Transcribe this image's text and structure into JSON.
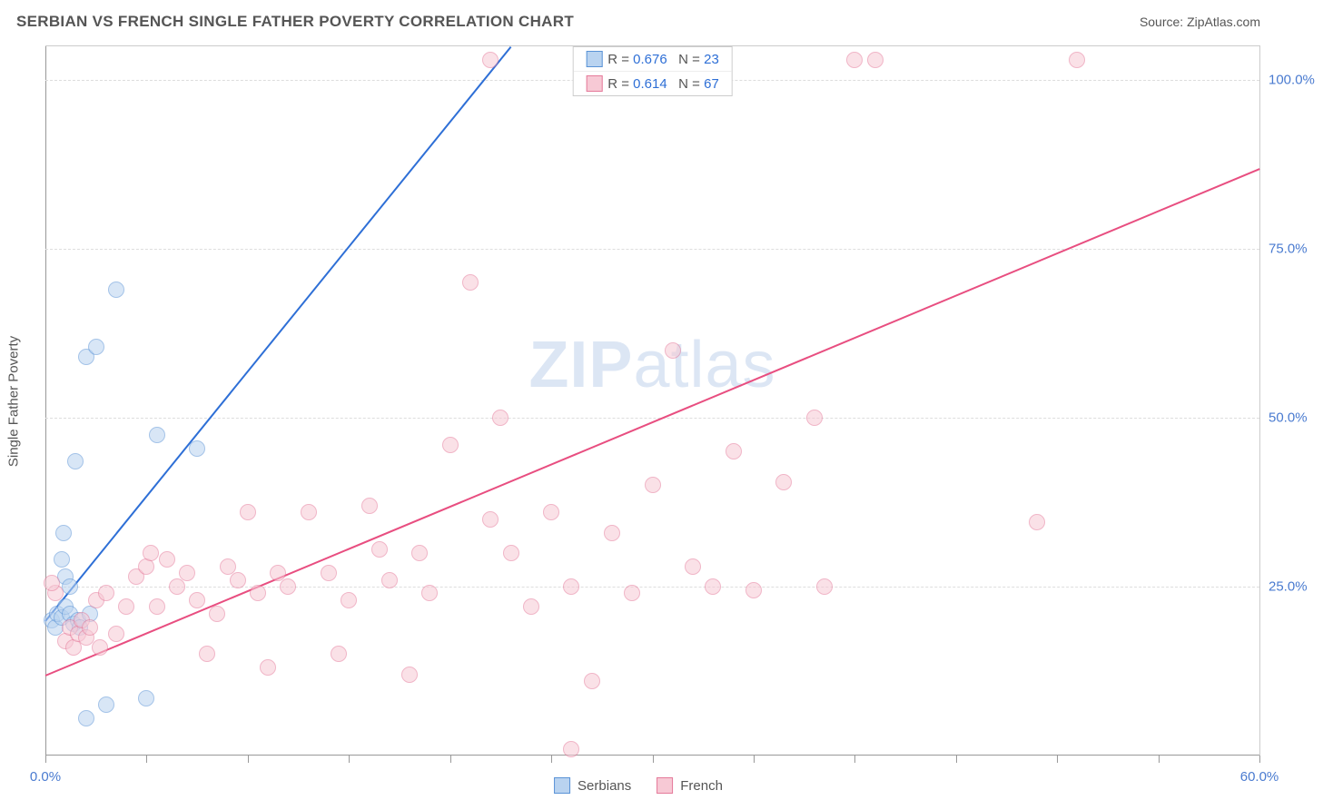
{
  "title": "SERBIAN VS FRENCH SINGLE FATHER POVERTY CORRELATION CHART",
  "source_label": "Source: ZipAtlas.com",
  "ylabel": "Single Father Poverty",
  "watermark_main": "ZIP",
  "watermark_sub": "atlas",
  "watermark_color": "#9cb8e0",
  "chart": {
    "type": "scatter",
    "background_color": "#ffffff",
    "grid_color": "#dddddd",
    "axis_color": "#999999",
    "xlim": [
      0,
      60
    ],
    "ylim": [
      0,
      105
    ],
    "xtick_positions": [
      0,
      5,
      10,
      15,
      20,
      25,
      30,
      35,
      40,
      45,
      50,
      55,
      60
    ],
    "xtick_labels": {
      "0": "0.0%",
      "60": "60.0%"
    },
    "xtick_label_color": "#4a7bd0",
    "ytick_positions": [
      25,
      50,
      75,
      100
    ],
    "ytick_labels": [
      "25.0%",
      "50.0%",
      "75.0%",
      "100.0%"
    ],
    "ytick_label_color": "#4a7bd0",
    "marker_radius": 9,
    "marker_opacity": 0.55,
    "marker_border_width": 1.2,
    "title_fontsize": 17,
    "label_fontsize": 15
  },
  "series": [
    {
      "name": "Serbians",
      "color_fill": "#b9d3f0",
      "color_stroke": "#5a93d6",
      "trend_color": "#2e6fd6",
      "R": "0.676",
      "N": "23",
      "trend": {
        "x1": 0,
        "y1": 20,
        "x2": 23,
        "y2": 105
      },
      "points": [
        [
          0.3,
          20
        ],
        [
          0.5,
          19
        ],
        [
          0.6,
          21
        ],
        [
          0.8,
          20.5
        ],
        [
          1.0,
          22
        ],
        [
          1.2,
          21
        ],
        [
          1.4,
          19.5
        ],
        [
          1.6,
          20
        ],
        [
          2.0,
          5.5
        ],
        [
          3.0,
          7.5
        ],
        [
          1.0,
          26.5
        ],
        [
          1.5,
          43.5
        ],
        [
          2.0,
          59
        ],
        [
          2.5,
          60.5
        ],
        [
          3.5,
          69
        ],
        [
          5.0,
          8.5
        ],
        [
          5.5,
          47.5
        ],
        [
          7.5,
          45.5
        ],
        [
          0.8,
          29
        ],
        [
          0.9,
          33
        ],
        [
          1.2,
          25
        ],
        [
          1.7,
          19
        ],
        [
          2.2,
          21
        ]
      ]
    },
    {
      "name": "French",
      "color_fill": "#f7c9d5",
      "color_stroke": "#e57a9a",
      "trend_color": "#e84e80",
      "R": "0.614",
      "N": "67",
      "trend": {
        "x1": 0,
        "y1": 12,
        "x2": 60,
        "y2": 87
      },
      "points": [
        [
          0.5,
          24
        ],
        [
          1.0,
          17
        ],
        [
          1.2,
          19
        ],
        [
          1.4,
          16
        ],
        [
          1.6,
          18
        ],
        [
          1.8,
          20
        ],
        [
          2.0,
          17.5
        ],
        [
          2.2,
          19
        ],
        [
          2.5,
          23
        ],
        [
          3.0,
          24
        ],
        [
          3.5,
          18
        ],
        [
          4.0,
          22
        ],
        [
          4.5,
          26.5
        ],
        [
          5.0,
          28
        ],
        [
          5.5,
          22
        ],
        [
          6.0,
          29
        ],
        [
          6.5,
          25
        ],
        [
          7.0,
          27
        ],
        [
          7.5,
          23
        ],
        [
          8.0,
          15
        ],
        [
          8.5,
          21
        ],
        [
          9.0,
          28
        ],
        [
          9.5,
          26
        ],
        [
          10.0,
          36
        ],
        [
          10.5,
          24
        ],
        [
          11.0,
          13
        ],
        [
          11.5,
          27
        ],
        [
          12.0,
          25
        ],
        [
          13.0,
          36
        ],
        [
          14.0,
          27
        ],
        [
          14.5,
          15
        ],
        [
          15.0,
          23
        ],
        [
          16.0,
          37
        ],
        [
          17.0,
          26
        ],
        [
          18.0,
          12
        ],
        [
          18.5,
          30
        ],
        [
          19.0,
          24
        ],
        [
          20.0,
          46
        ],
        [
          21.0,
          70
        ],
        [
          22.0,
          35
        ],
        [
          22.5,
          50
        ],
        [
          23.0,
          30
        ],
        [
          24.0,
          22
        ],
        [
          25.0,
          36
        ],
        [
          26.0,
          25
        ],
        [
          27.0,
          11
        ],
        [
          28.0,
          33
        ],
        [
          29.0,
          24
        ],
        [
          30.0,
          40
        ],
        [
          31.0,
          60
        ],
        [
          32.0,
          28
        ],
        [
          33.0,
          25
        ],
        [
          34.0,
          45
        ],
        [
          35.0,
          24.5
        ],
        [
          36.5,
          40.5
        ],
        [
          38.0,
          50
        ],
        [
          38.5,
          25
        ],
        [
          40.0,
          103
        ],
        [
          41.0,
          103
        ],
        [
          49.0,
          34.5
        ],
        [
          51.0,
          103
        ],
        [
          22.0,
          103
        ],
        [
          26.0,
          1
        ],
        [
          16.5,
          30.5
        ],
        [
          5.2,
          30
        ],
        [
          0.3,
          25.5
        ],
        [
          2.7,
          16
        ]
      ]
    }
  ],
  "legend_top": {
    "R_label": "R =",
    "N_label": "N =",
    "value_color": "#2e6fd6",
    "text_color": "#555555"
  },
  "legend_bottom_text_color": "#555555"
}
